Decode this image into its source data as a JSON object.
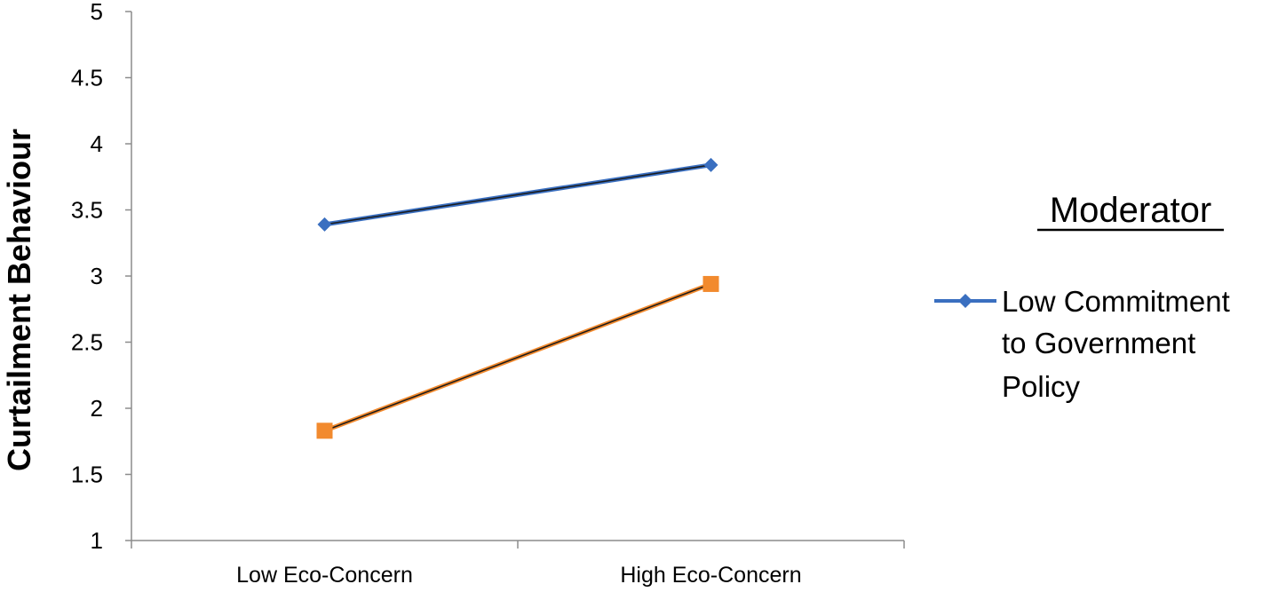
{
  "chart_data": {
    "type": "line",
    "title": "",
    "xlabel": "",
    "ylabel": "Curtailment Behaviour",
    "categories": [
      "Low Eco-Concern",
      "High Eco-Concern"
    ],
    "ylim": [
      1,
      5
    ],
    "yticks": [
      "1",
      "1.5",
      "2",
      "2.5",
      "3",
      "3.5",
      "4",
      "4.5",
      "5"
    ],
    "grid": false,
    "series": [
      {
        "name": "Low Commitment to Government Policy",
        "values": [
          3.39,
          3.84
        ],
        "color": "#3a6fc0",
        "marker": "diamond"
      },
      {
        "values": [
          1.83,
          2.94
        ],
        "color": "#f28a2e",
        "marker": "square"
      }
    ],
    "legend": {
      "title": "Moderator",
      "placement": "right",
      "lines": [
        "Low Commitment",
        "to Government",
        "Policy"
      ]
    }
  }
}
